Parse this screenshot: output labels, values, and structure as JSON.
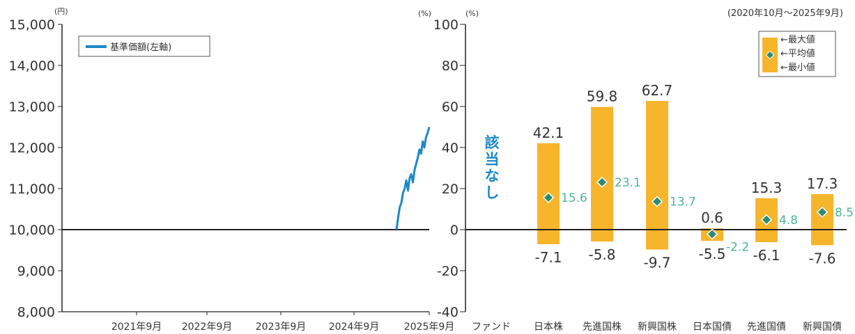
{
  "chart_data": [
    {
      "type": "line",
      "left_unit": "(円)",
      "right_unit": "(%)",
      "y_ticks": [
        "15,000",
        "14,000",
        "13,000",
        "12,000",
        "11,000",
        "10,000",
        "9,000",
        "8,000"
      ],
      "ylim": [
        8000,
        15000
      ],
      "x_ticks": [
        "2021年9月",
        "2022年9月",
        "2023年9月",
        "2024年9月",
        "2025年9月"
      ],
      "legend": "基準価額(左軸)",
      "baseline": 10000,
      "series": [
        {
          "name": "基準価額(左軸)",
          "color": "#1e88c7",
          "x": [
            0.0,
            0.05,
            0.1,
            0.15,
            0.2,
            0.25,
            0.3,
            0.35,
            0.4,
            0.45,
            0.5,
            0.55,
            0.6,
            0.65,
            0.7,
            0.75,
            0.8,
            0.85,
            0.9,
            0.95,
            1.0
          ],
          "y": [
            10000,
            10300,
            10550,
            10650,
            10900,
            11000,
            11200,
            10950,
            11250,
            11350,
            11150,
            11450,
            11600,
            11750,
            11950,
            11850,
            12150,
            12000,
            12250,
            12350,
            12500
          ]
        }
      ],
      "x_start": "2025年5月",
      "x_end": "2025年9月"
    },
    {
      "type": "bar",
      "unit": "(%)",
      "period": "(2020年10月～2025年9月)",
      "y_ticks": [
        "100",
        "80",
        "60",
        "40",
        "20",
        "0",
        "-20",
        "-40"
      ],
      "ylim": [
        -40,
        100
      ],
      "categories": [
        "ファンド",
        "日本株",
        "先進国株",
        "新興国株",
        "日本国債",
        "先進国債",
        "新興国債"
      ],
      "not_applicable": "該当なし",
      "max": [
        null,
        42.1,
        59.8,
        62.7,
        0.6,
        15.3,
        17.3
      ],
      "avg": [
        null,
        15.6,
        23.1,
        13.7,
        -2.2,
        4.8,
        8.5
      ],
      "min": [
        null,
        -7.1,
        -5.8,
        -9.7,
        -5.5,
        -6.1,
        -7.6
      ],
      "max_labels": [
        "",
        "42.1",
        "59.8",
        "62.7",
        "0.6",
        "15.3",
        "17.3"
      ],
      "avg_labels": [
        "",
        "15.6",
        "23.1",
        "13.7",
        "-2.2",
        "4.8",
        "8.5"
      ],
      "min_labels": [
        "",
        "-7.1",
        "-5.8",
        "-9.7",
        "-5.5",
        "-6.1",
        "-7.6"
      ],
      "legend": {
        "max": "←最大値",
        "avg": "←平均値",
        "min": "←最小値"
      },
      "colors": {
        "bar": "#f7b52c",
        "marker": "#2e8b6e",
        "avg_text": "#4cb592"
      }
    }
  ]
}
